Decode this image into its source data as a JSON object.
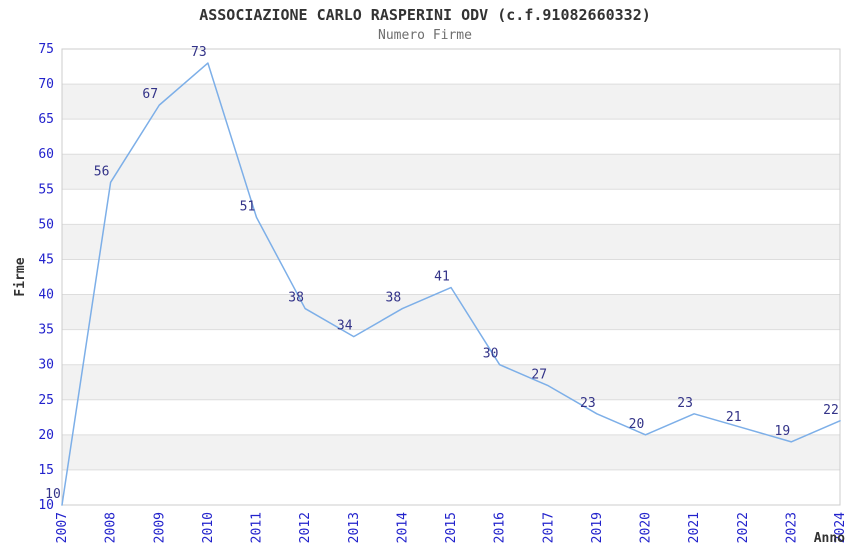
{
  "page": {
    "background": "#ffffff"
  },
  "chart_data": {
    "type": "line",
    "title": "ASSOCIAZIONE CARLO RASPERINI ODV (c.f.91082660332)",
    "subtitle": "Numero Firme",
    "xlabel": "Anno",
    "ylabel": "Firme",
    "categories": [
      "2007",
      "2008",
      "2009",
      "2010",
      "2011",
      "2012",
      "2013",
      "2014",
      "2015",
      "2016",
      "2017",
      "2019",
      "2020",
      "2021",
      "2022",
      "2023",
      "2024"
    ],
    "values": [
      10,
      56,
      67,
      73,
      51,
      38,
      34,
      38,
      41,
      30,
      27,
      23,
      20,
      23,
      21,
      19,
      22
    ],
    "ylim": [
      10,
      75
    ],
    "ytick_step": 5,
    "grid": true,
    "legend_position": "none",
    "band_fill_alternating": true,
    "x_labels_rotated_degrees": 90,
    "colors": {
      "line": "#7dafe8",
      "tick_label": "#2222cc",
      "data_label": "#333388",
      "band_gray": "#f2f2f2",
      "grid_line": "#dddddd",
      "plot_border": "#cccccc",
      "title": "#333333",
      "subtitle": "#6e6e6e",
      "axis_title": "#333333",
      "background": "#ffffff"
    }
  }
}
